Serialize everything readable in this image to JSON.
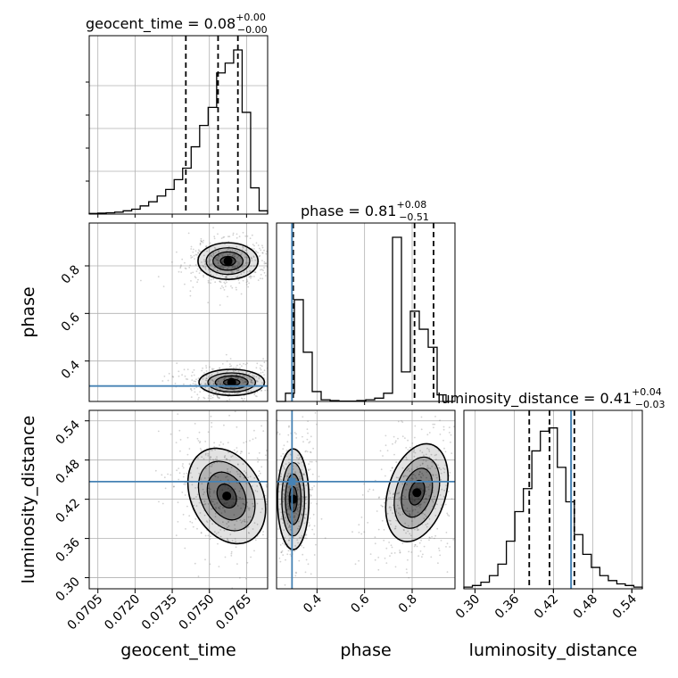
{
  "chart_data": {
    "type": "corner",
    "colors": {
      "hist": "#000000",
      "quantile": "#000000",
      "truth": "#4682b4",
      "density": "#000000",
      "grid": "#b0b0b0",
      "scatter": "#7f7f7f"
    },
    "grid": true,
    "parameters": [
      {
        "name": "geocent_time",
        "label": "geocent_time",
        "range": [
          0.07015,
          0.07735
        ],
        "ticks": [
          "0.0705",
          "0.0720",
          "0.0735",
          "0.0750",
          "0.0765"
        ],
        "tick_values": [
          0.0705,
          0.072,
          0.0735,
          0.075,
          0.0765
        ],
        "title_main": "geocent_time = 0.08",
        "title_sup": "+0.00",
        "title_sub": "−0.00",
        "quantiles": [
          0.07405,
          0.07535,
          0.07615
        ],
        "truth": null,
        "hist": [
          0.004,
          0.006,
          0.008,
          0.012,
          0.02,
          0.03,
          0.05,
          0.075,
          0.11,
          0.15,
          0.21,
          0.28,
          0.41,
          0.54,
          0.65,
          0.86,
          0.92,
          1.0,
          0.62,
          0.16,
          0.02
        ]
      },
      {
        "name": "phase",
        "label": "phase",
        "range": [
          0.23,
          0.98
        ],
        "ticks": [
          "0.4",
          "0.6",
          "0.8"
        ],
        "tick_values": [
          0.4,
          0.6,
          0.8
        ],
        "title_main": "phase = 0.81",
        "title_sup": "+0.08",
        "title_sub": "−0.51",
        "quantiles": [
          0.3,
          0.81,
          0.89
        ],
        "truth": 0.295,
        "hist": [
          0.0,
          0.05,
          0.62,
          0.3,
          0.06,
          0.01,
          0.005,
          0.002,
          0.002,
          0.005,
          0.01,
          0.02,
          0.05,
          1.0,
          0.18,
          0.55,
          0.44,
          0.33,
          0.04,
          0.0
        ]
      },
      {
        "name": "luminosity_distance",
        "label": "luminosity_distance",
        "range": [
          0.283,
          0.556
        ],
        "ticks": [
          "0.30",
          "0.36",
          "0.42",
          "0.48",
          "0.54"
        ],
        "tick_values": [
          0.3,
          0.36,
          0.42,
          0.48,
          0.54
        ],
        "title_main": "luminosity_distance = 0.41",
        "title_sup": "+0.04",
        "title_sub": "−0.03",
        "quantiles": [
          0.383,
          0.414,
          0.452
        ],
        "truth": 0.447,
        "hist": [
          0.01,
          0.02,
          0.04,
          0.08,
          0.15,
          0.29,
          0.47,
          0.61,
          0.84,
          0.96,
          0.98,
          0.74,
          0.53,
          0.33,
          0.21,
          0.13,
          0.08,
          0.05,
          0.03,
          0.02,
          0.01
        ]
      }
    ],
    "pairs": [
      {
        "x": "geocent_time",
        "y": "phase",
        "modes": [
          {
            "cx": 0.07575,
            "cy": 0.82,
            "sx": 0.00055,
            "sy": 0.035,
            "tilt": 0.0
          },
          {
            "cx": 0.0759,
            "cy": 0.31,
            "sx": 0.0006,
            "sy": 0.025,
            "tilt": 0.0
          }
        ]
      },
      {
        "x": "geocent_time",
        "y": "luminosity_distance",
        "modes": [
          {
            "cx": 0.0757,
            "cy": 0.425,
            "sx": 0.00065,
            "sy": 0.035,
            "tilt": 0.5
          }
        ]
      },
      {
        "x": "phase",
        "y": "luminosity_distance",
        "modes": [
          {
            "cx": 0.3,
            "cy": 0.42,
            "sx": 0.03,
            "sy": 0.035,
            "tilt": 0.0
          },
          {
            "cx": 0.82,
            "cy": 0.43,
            "sx": 0.055,
            "sy": 0.035,
            "tilt": -0.3
          }
        ]
      }
    ]
  }
}
